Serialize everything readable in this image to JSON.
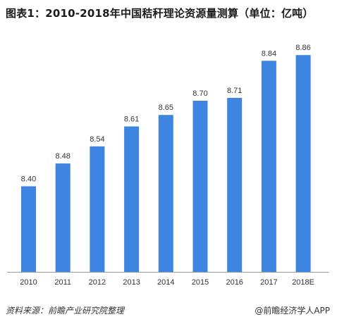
{
  "title": "图表1：2010-2018年中国秸秆理论资源量测算（单位：亿吨）",
  "footer": {
    "source": "资料来源：前瞻产业研究院整理",
    "brand": "@前瞻经济学人APP"
  },
  "colors": {
    "bar": "#3d85e0",
    "axis": "#999999"
  },
  "chart_data": {
    "type": "bar",
    "title": "图表1：2010-2018年中国秸秆理论资源量测算（单位：亿吨）",
    "categories": [
      "2010",
      "2011",
      "2012",
      "2013",
      "2014",
      "2015",
      "2016",
      "2017",
      "2018E"
    ],
    "values": [
      8.4,
      8.48,
      8.54,
      8.61,
      8.65,
      8.7,
      8.71,
      8.84,
      8.86
    ],
    "value_labels": [
      "8.40",
      "8.48",
      "8.54",
      "8.61",
      "8.65",
      "8.70",
      "8.71",
      "8.84",
      "8.86"
    ],
    "xlabel": "",
    "ylabel": "",
    "ylim": [
      8.1,
      8.9
    ],
    "grid": false,
    "legend": "none"
  }
}
